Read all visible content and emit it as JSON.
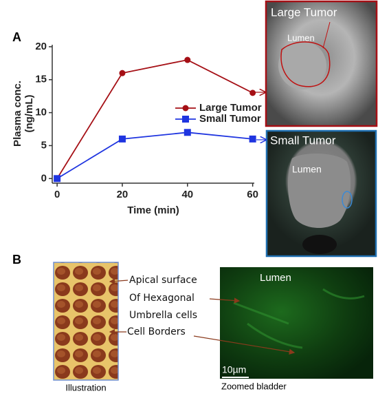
{
  "chart_data": {
    "type": "line",
    "panel_label": "A",
    "xlabel": "Time (min)",
    "ylabel": [
      "Plasma conc.",
      "(ng/mL)"
    ],
    "x": [
      0,
      20,
      40,
      60
    ],
    "series": [
      {
        "name": "Large Tumor",
        "color": "#a50f15",
        "marker": "circle",
        "values": [
          0,
          16,
          18,
          13
        ]
      },
      {
        "name": "Small Tumor",
        "color": "#1f35e0",
        "marker": "square",
        "values": [
          0,
          6,
          7,
          6
        ]
      }
    ],
    "xlim": [
      -1.5,
      60.5
    ],
    "xticks": [
      0,
      20,
      40,
      60
    ],
    "ylim": [
      -0.7,
      20.3
    ],
    "yticks": [
      0,
      5,
      10,
      15,
      20
    ],
    "grid": false
  },
  "images": {
    "large_tumor": {
      "title": "Large Tumor",
      "label": "Lumen"
    },
    "small_tumor": {
      "title": "Small Tumor",
      "label": "Lumen"
    }
  },
  "panel_b": {
    "label": "B",
    "illustration": {
      "caption": "Illustration",
      "notes": [
        "Apical surface",
        "Of Hexagonal",
        "Umbrella cells",
        "Cell Borders"
      ]
    },
    "zoomed": {
      "label": "Lumen",
      "scale": "10µm",
      "caption": "Zoomed bladder"
    }
  }
}
